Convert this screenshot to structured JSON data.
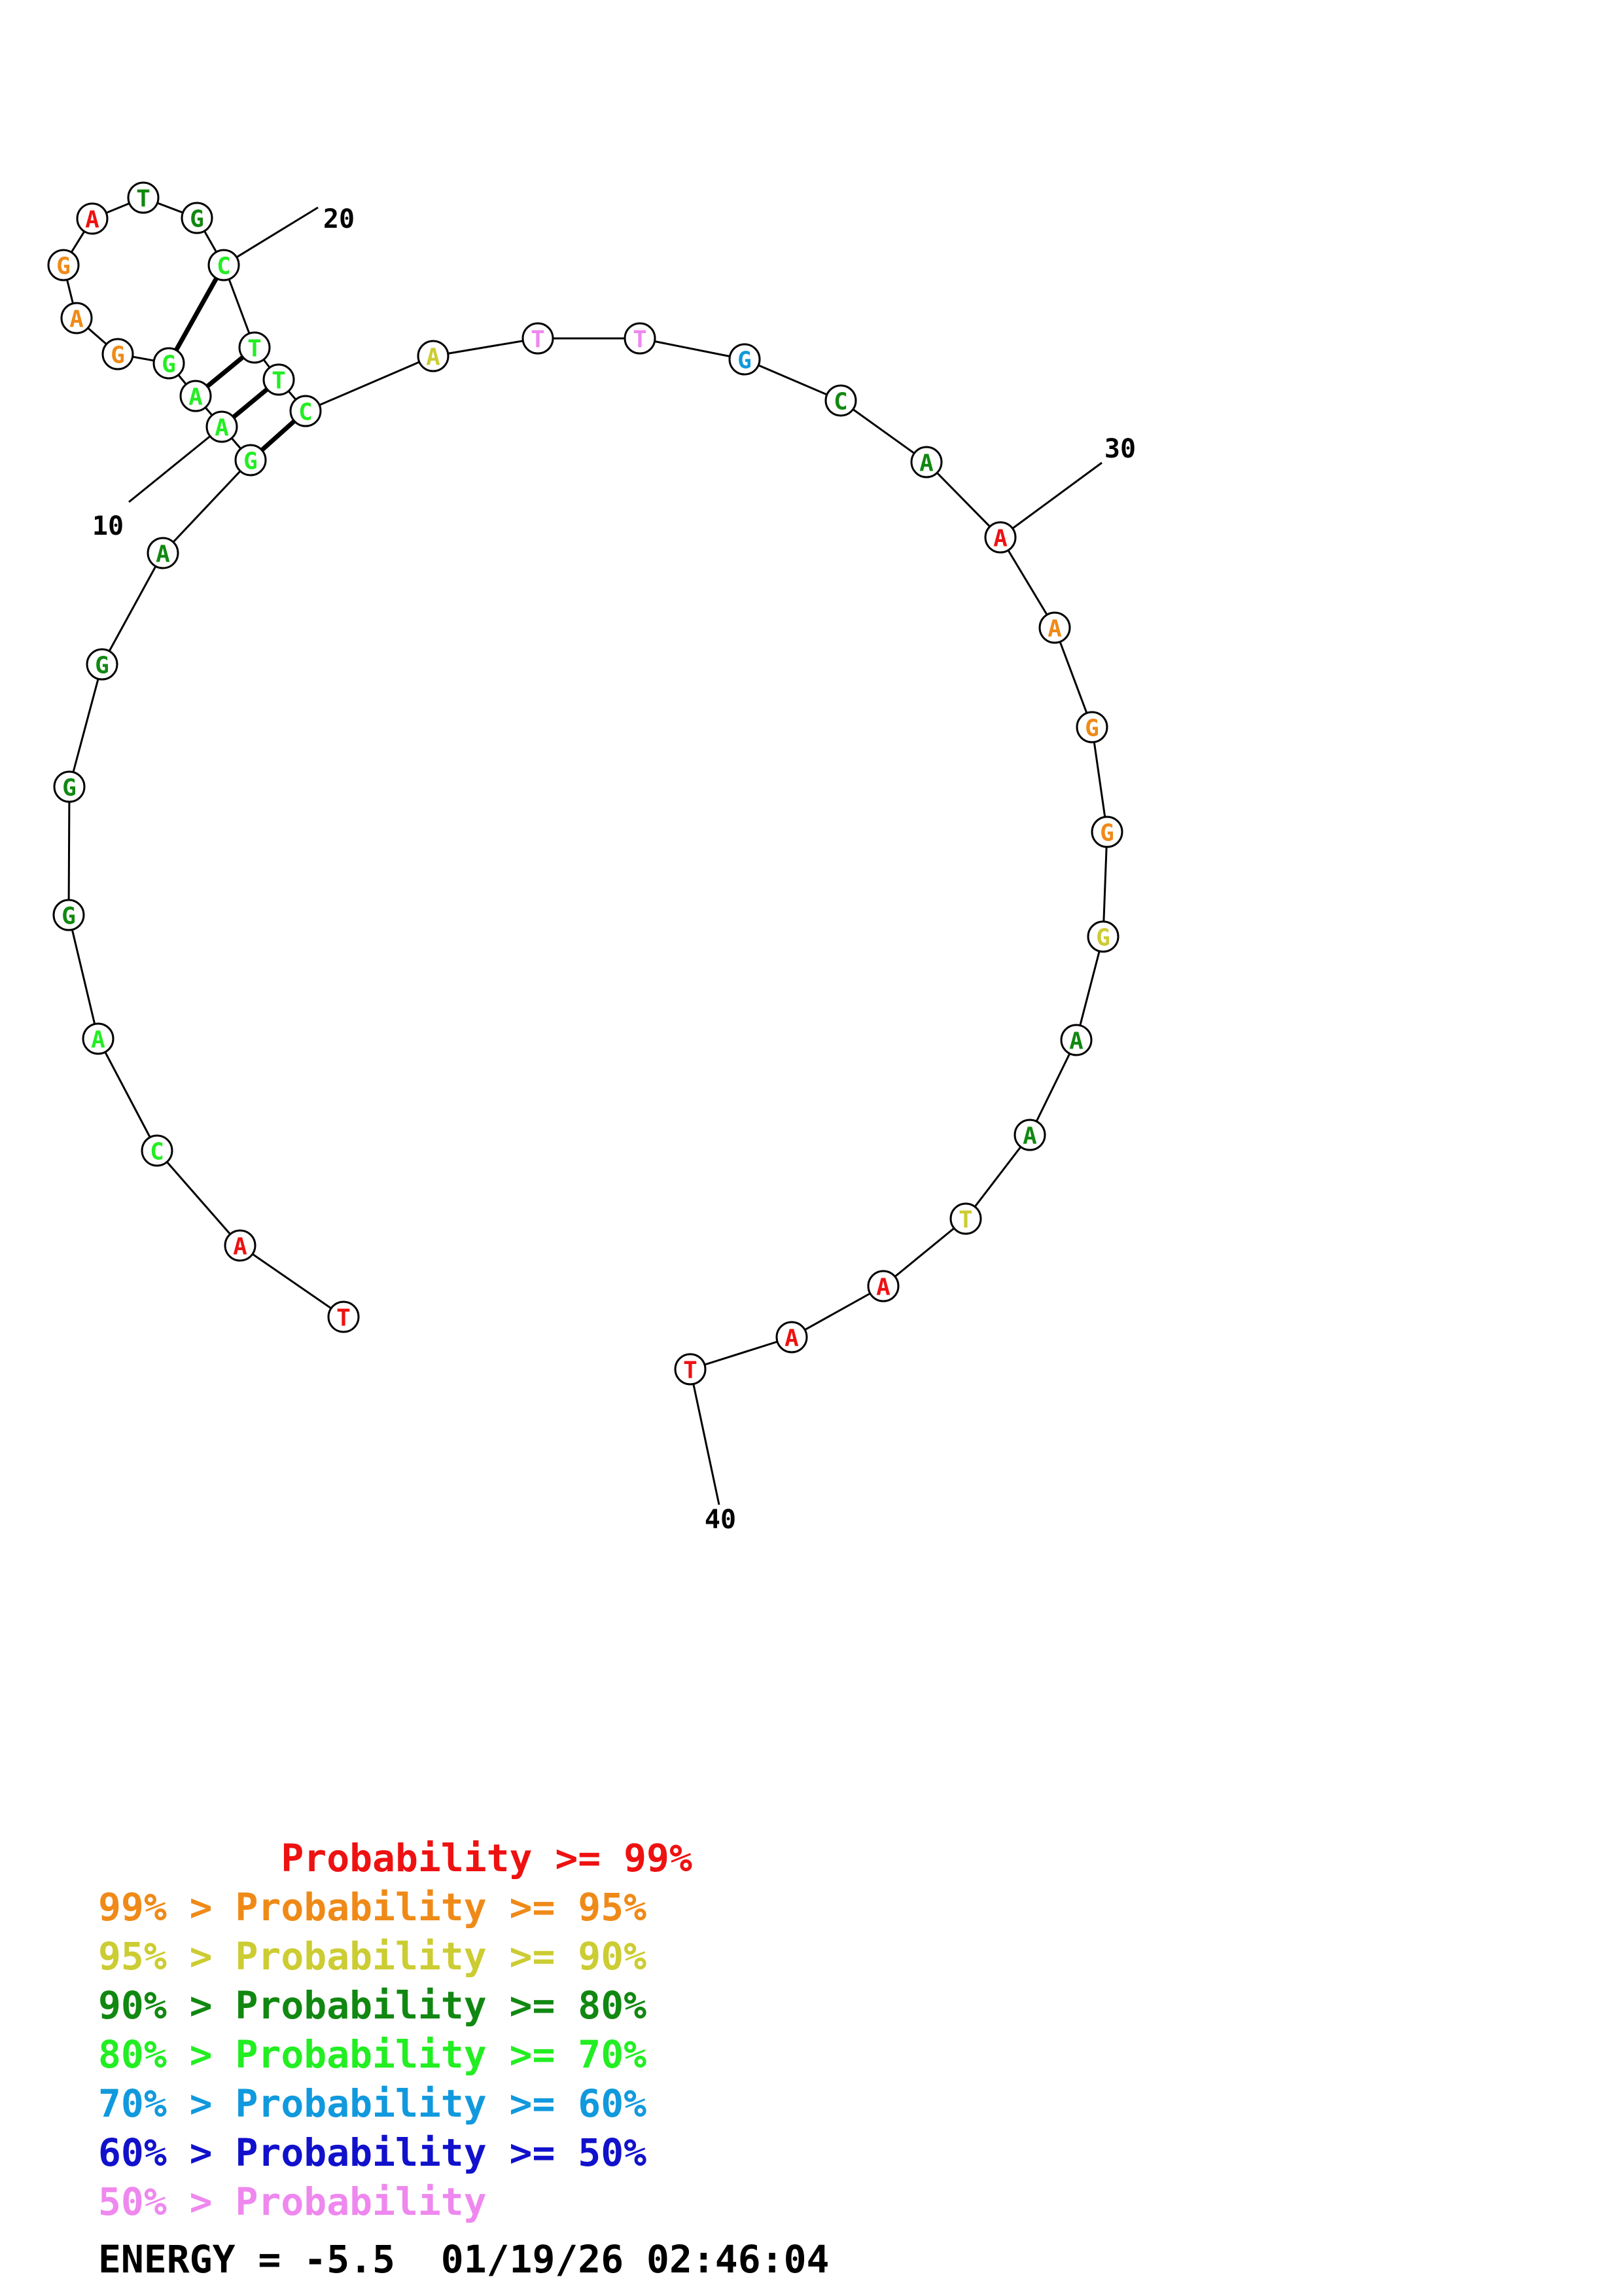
{
  "sequence": [
    "T",
    "A",
    "C",
    "A",
    "G",
    "G",
    "G",
    "A",
    "G",
    "A",
    "A",
    "G",
    "G",
    "A",
    "G",
    "A",
    "T",
    "G",
    "C",
    "T",
    "T",
    "C",
    "A",
    "T",
    "T",
    "G",
    "C",
    "A",
    "A",
    "A",
    "G",
    "G",
    "G",
    "A",
    "A",
    "T",
    "A",
    "A",
    "T"
  ],
  "probability_class": [
    0,
    0,
    4,
    4,
    3,
    3,
    3,
    3,
    4,
    4,
    4,
    4,
    1,
    1,
    1,
    0,
    3,
    3,
    4,
    4,
    4,
    4,
    2,
    7,
    7,
    5,
    3,
    3,
    0,
    1,
    1,
    1,
    2,
    3,
    3,
    2,
    0,
    0,
    0
  ],
  "pairs": [
    [
      9,
      22
    ],
    [
      10,
      21
    ],
    [
      11,
      20
    ],
    [
      12,
      19
    ]
  ],
  "tick_labels": [
    {
      "base_index": 10,
      "text": "10"
    },
    {
      "base_index": 20,
      "text": "20"
    },
    {
      "base_index": 30,
      "text": "30"
    },
    {
      "base_index": 40,
      "text": "40"
    }
  ],
  "colors": [
    "#ee1111",
    "#ef8a18",
    "#cccc33",
    "#118811",
    "#22ee22",
    "#1199dd",
    "#1111cc",
    "#ee88ee"
  ],
  "legend": [
    {
      "text": "        Probability >= 99%",
      "color": "#ee1111"
    },
    {
      "text": "99% > Probability >= 95%",
      "color": "#ef8a18"
    },
    {
      "text": "95% > Probability >= 90%",
      "color": "#cccc33"
    },
    {
      "text": "90% > Probability >= 80%",
      "color": "#118811"
    },
    {
      "text": "80% > Probability >= 70%",
      "color": "#22ee22"
    },
    {
      "text": "70% > Probability >= 60%",
      "color": "#1199dd"
    },
    {
      "text": "60% > Probability >= 50%",
      "color": "#1111cc"
    },
    {
      "text": "50% > Probability",
      "color": "#ee88ee"
    }
  ],
  "energy_line": "ENERGY = -5.5  01/19/26 02:46:04"
}
